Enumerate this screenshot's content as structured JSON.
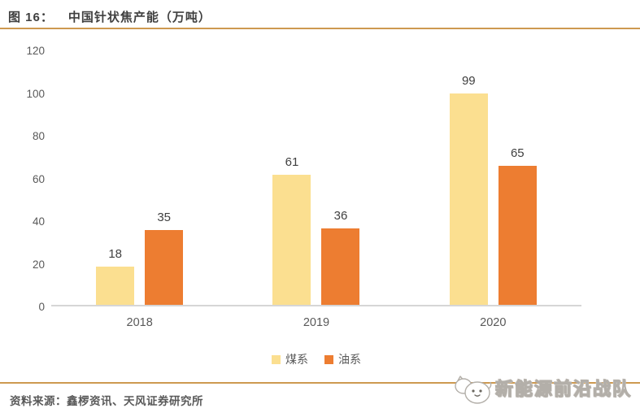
{
  "figure": {
    "label": "图 16：",
    "title": "中国针状焦产能（万吨）"
  },
  "chart_data": {
    "type": "bar",
    "title": "中国针状焦产能（万吨）",
    "categories": [
      "2018",
      "2019",
      "2020"
    ],
    "series": [
      {
        "name": "煤系",
        "color": "#fbdf90",
        "values": [
          18,
          61,
          99
        ]
      },
      {
        "name": "油系",
        "color": "#ed7d31",
        "values": [
          35,
          36,
          65
        ]
      }
    ],
    "xlabel": "",
    "ylabel": "",
    "ylim": [
      0,
      120
    ],
    "ytick_step": 20,
    "yticks": [
      0,
      20,
      40,
      60,
      80,
      100,
      120
    ],
    "grid": false,
    "legend_position": "bottom",
    "bar_value_labels": true
  },
  "footer": {
    "source_text": "资料来源：鑫椤资讯、天风证券研究所"
  },
  "watermark": {
    "text": "新能源前沿战队",
    "icon": "cat-mascot-icon"
  },
  "colors": {
    "accent_line": "#cd9950",
    "series_coal": "#fbdf90",
    "series_oil": "#ed7d31",
    "axis_line": "#d6d6d6",
    "text_dark": "#3f3f3f",
    "text_gray": "#595959"
  }
}
